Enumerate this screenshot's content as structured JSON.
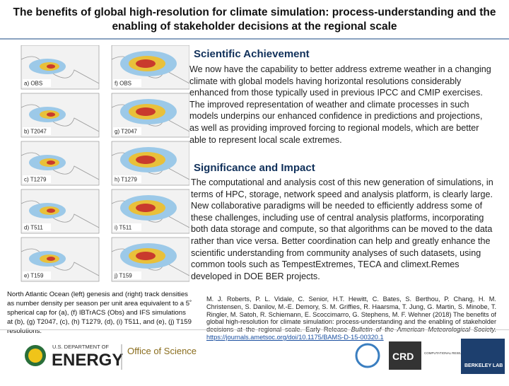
{
  "header": {
    "title": "The benefits of global high-resolution for climate simulation: process-understanding and the enabling of stakeholder decisions at the regional scale"
  },
  "sections": [
    {
      "heading": "Scientific Achievement",
      "body": "We now have the capability to better address extreme weather in a changing climate with global models having horizontal resolutions considerably enhanced from those typically used in previous IPCC and CMIP exercises. The improved representation of weather and climate processes in such models underpins our enhanced confidence in predictions and projections, as well as providing improved forcing to regional models, which are better able to represent local scale extremes."
    },
    {
      "heading": "Significance and Impact",
      "body": "The computational and analysis cost of this new generation of simulations, in terms of HPC, storage, network speed and analysis platform, is clearly large. New collaborative paradigms will be needed to efficiently address some of these challenges, including use of central analysis platforms, incorporating both data storage and compute, so that algorithms can be moved to the data rather than vice versa. Better coordination can help and greatly enhance the scientific understanding from community analyses of such datasets, using common tools such as TempestExtremes, TECA and climext.Remes developed in DOE BER projects."
    }
  ],
  "figure": {
    "panels": [
      {
        "left": "a) OBS",
        "right": "f) OBS"
      },
      {
        "left": "b) T2047",
        "right": "g) T2047"
      },
      {
        "left": "c) T1279",
        "right": "h) T1279"
      },
      {
        "left": "d) T511",
        "right": "i) T511"
      },
      {
        "left": "e) T159",
        "right": "j) T159"
      }
    ],
    "caption": "North Atlantic Ocean (left) genesis and (right) track densities as number density per season per unit area equivalent to a 5˚ spherical cap for (a), (f) IBTrACS (Obs) and IFS simulations at (b), (g) T2047, (c), (h) T1279, (d), (i) T511, and (e), (j) T159 resolutions."
  },
  "reference": {
    "text": "M. J. Roberts, P. L. Vidale, C. Senior, H.T. Hewitt, C. Bates, S. Berthou, P. Chang, H. M. Christensen, S. Danilov, M.-E. Demory, S. M. Griffies, R. Haarsma, T. Jung, G. Martin, S. Minobe, T. Ringler, M. Satoh, R. Schiemann, E. Scoccimarro, G. Stephens, M. F. Wehner (2018) The benefits of global high-resolution for climate simulation: process-understanding and the enabling of stakeholder decisions at the regional scale. Early Release",
    "journal": "Bulletin of the American Meteorological Society.",
    "link": "https://journals.ametsoc.org/doi/10.1175/BAMS-D-15-00320.1"
  },
  "footer": {
    "doe_top": "U.S. DEPARTMENT OF",
    "doe_main": "ENERGY",
    "office": "Office of Science",
    "crd": "CRD",
    "crd_name": "COMPUTATIONAL RESEARCH DIVISION",
    "lab": "BERKELEY LAB"
  }
}
